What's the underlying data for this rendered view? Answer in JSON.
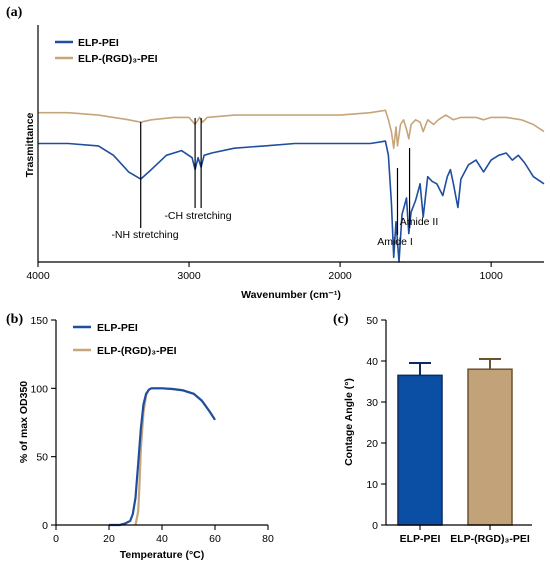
{
  "chart_data": [
    {
      "panel": "(a)",
      "type": "line",
      "xlabel": "Wavenumber (cm⁻¹)",
      "ylabel": "Trasmittance",
      "xlim": [
        4000,
        650
      ],
      "xticks": [
        4000,
        3000,
        2000,
        1000
      ],
      "legend_position": "top-left",
      "series": [
        {
          "name": "ELP-PEI",
          "color": "#1f4e9e",
          "points": [
            [
              4000,
              0.5
            ],
            [
              3800,
              0.5
            ],
            [
              3600,
              0.49
            ],
            [
              3500,
              0.45
            ],
            [
              3400,
              0.38
            ],
            [
              3320,
              0.35
            ],
            [
              3250,
              0.39
            ],
            [
              3150,
              0.45
            ],
            [
              3050,
              0.47
            ],
            [
              2980,
              0.44
            ],
            [
              2960,
              0.39
            ],
            [
              2940,
              0.44
            ],
            [
              2920,
              0.4
            ],
            [
              2900,
              0.45
            ],
            [
              2850,
              0.46
            ],
            [
              2700,
              0.48
            ],
            [
              2500,
              0.49
            ],
            [
              2300,
              0.5
            ],
            [
              2000,
              0.5
            ],
            [
              1800,
              0.5
            ],
            [
              1700,
              0.51
            ],
            [
              1680,
              0.45
            ],
            [
              1660,
              0.25
            ],
            [
              1645,
              0.02
            ],
            [
              1630,
              0.17
            ],
            [
              1610,
              0.0
            ],
            [
              1590,
              0.2
            ],
            [
              1560,
              0.27
            ],
            [
              1545,
              0.12
            ],
            [
              1530,
              0.21
            ],
            [
              1500,
              0.26
            ],
            [
              1470,
              0.33
            ],
            [
              1450,
              0.19
            ],
            [
              1420,
              0.36
            ],
            [
              1390,
              0.34
            ],
            [
              1360,
              0.33
            ],
            [
              1320,
              0.28
            ],
            [
              1290,
              0.36
            ],
            [
              1270,
              0.39
            ],
            [
              1250,
              0.33
            ],
            [
              1220,
              0.23
            ],
            [
              1200,
              0.35
            ],
            [
              1150,
              0.41
            ],
            [
              1100,
              0.43
            ],
            [
              1050,
              0.38
            ],
            [
              1000,
              0.43
            ],
            [
              950,
              0.45
            ],
            [
              900,
              0.46
            ],
            [
              860,
              0.43
            ],
            [
              820,
              0.45
            ],
            [
              780,
              0.42
            ],
            [
              720,
              0.36
            ],
            [
              650,
              0.33
            ]
          ]
        },
        {
          "name": "ELP-(RGD)₃-PEI",
          "color": "#c7a57a",
          "points": [
            [
              4000,
              0.63
            ],
            [
              3800,
              0.63
            ],
            [
              3600,
              0.62
            ],
            [
              3500,
              0.61
            ],
            [
              3400,
              0.6
            ],
            [
              3320,
              0.59
            ],
            [
              3250,
              0.6
            ],
            [
              3100,
              0.61
            ],
            [
              3000,
              0.61
            ],
            [
              2960,
              0.58
            ],
            [
              2930,
              0.61
            ],
            [
              2910,
              0.59
            ],
            [
              2880,
              0.61
            ],
            [
              2700,
              0.62
            ],
            [
              2400,
              0.62
            ],
            [
              2000,
              0.62
            ],
            [
              1800,
              0.63
            ],
            [
              1700,
              0.64
            ],
            [
              1680,
              0.6
            ],
            [
              1660,
              0.55
            ],
            [
              1645,
              0.48
            ],
            [
              1630,
              0.57
            ],
            [
              1620,
              0.49
            ],
            [
              1600,
              0.58
            ],
            [
              1580,
              0.6
            ],
            [
              1560,
              0.56
            ],
            [
              1545,
              0.52
            ],
            [
              1530,
              0.58
            ],
            [
              1500,
              0.6
            ],
            [
              1470,
              0.59
            ],
            [
              1450,
              0.55
            ],
            [
              1420,
              0.6
            ],
            [
              1380,
              0.58
            ],
            [
              1350,
              0.6
            ],
            [
              1300,
              0.62
            ],
            [
              1250,
              0.6
            ],
            [
              1200,
              0.61
            ],
            [
              1150,
              0.61
            ],
            [
              1100,
              0.61
            ],
            [
              1050,
              0.6
            ],
            [
              1000,
              0.61
            ],
            [
              900,
              0.61
            ],
            [
              800,
              0.6
            ],
            [
              720,
              0.58
            ],
            [
              650,
              0.55
            ]
          ]
        }
      ],
      "annotations": [
        {
          "text": "-NH stretching",
          "x": 3320
        },
        {
          "text": "-CH stretching",
          "x": 2960
        },
        {
          "text": "-CH stretching",
          "x": 2920,
          "hidden": true
        },
        {
          "text": "Amide I",
          "x": 1620
        },
        {
          "text": "Amide II",
          "x": 1540
        }
      ]
    },
    {
      "panel": "(b)",
      "type": "line",
      "xlabel": "Temperature (°C)",
      "ylabel": "% of  max OD350",
      "xlim": [
        0,
        80
      ],
      "ylim": [
        0,
        150
      ],
      "xticks": [
        0,
        20,
        40,
        60,
        80
      ],
      "yticks": [
        0,
        50,
        100,
        150
      ],
      "legend_position": "top-center",
      "series": [
        {
          "name": "ELP-PEI",
          "color": "#1f4e9e",
          "points": [
            [
              20,
              0
            ],
            [
              22,
              0
            ],
            [
              24,
              0
            ],
            [
              26,
              1
            ],
            [
              28,
              3
            ],
            [
              29,
              8
            ],
            [
              30,
              20
            ],
            [
              31,
              45
            ],
            [
              32,
              70
            ],
            [
              33,
              88
            ],
            [
              34,
              96
            ],
            [
              35,
              99
            ],
            [
              36,
              100
            ],
            [
              38,
              100
            ],
            [
              40,
              100
            ],
            [
              44,
              99.5
            ],
            [
              48,
              98.5
            ],
            [
              52,
              96
            ],
            [
              55,
              91
            ],
            [
              58,
              83
            ],
            [
              60,
              77
            ]
          ]
        },
        {
          "name": "ELP-(RGD)₃-PEI",
          "color": "#c7a57a",
          "points": [
            [
              30,
              0
            ],
            [
              31,
              10
            ],
            [
              31.5,
              30
            ],
            [
              32,
              55
            ],
            [
              33,
              82
            ],
            [
              34,
              95
            ],
            [
              35,
              99
            ],
            [
              36,
              100
            ],
            [
              38,
              100
            ],
            [
              40,
              100
            ],
            [
              44,
              99.5
            ],
            [
              48,
              98.5
            ],
            [
              52,
              96
            ],
            [
              55,
              91
            ],
            [
              58,
              83
            ],
            [
              60,
              77
            ]
          ]
        }
      ]
    },
    {
      "panel": "(c)",
      "type": "bar",
      "ylabel": "Contage Angle (°)",
      "ylim": [
        0,
        50
      ],
      "yticks": [
        0,
        10,
        20,
        30,
        40,
        50
      ],
      "categories": [
        "ELP-PEI",
        "ELP-(RGD)₃-PEI"
      ],
      "values": [
        36.5,
        38.0
      ],
      "errors": [
        3.0,
        2.5
      ],
      "colors": [
        "#0a4fa3",
        "#c2a278"
      ],
      "edge_colors": [
        "#0b2a5e",
        "#6b5330"
      ]
    }
  ]
}
